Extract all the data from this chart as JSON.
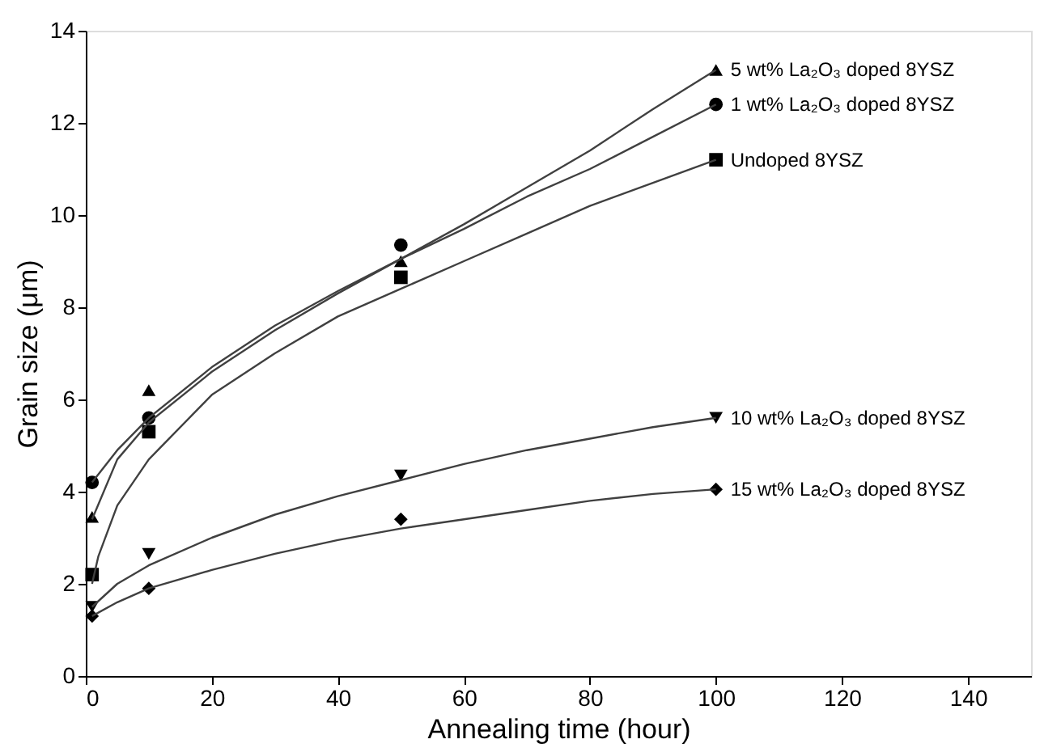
{
  "chart_data": {
    "type": "scatter",
    "xlabel": "Annealing time (hour)",
    "ylabel": "Grain size (μm)",
    "xlim": [
      0,
      150
    ],
    "xticks": [
      0,
      20,
      40,
      60,
      80,
      100,
      120,
      140
    ],
    "ylim": [
      0,
      14
    ],
    "yticks": [
      0,
      2,
      4,
      6,
      8,
      10,
      12,
      14
    ],
    "grid": false,
    "series": [
      {
        "name": "5 wt% La₂O₃ doped 8YSZ",
        "marker": "triangle",
        "color": "#000000",
        "x": [
          1,
          10,
          50,
          100
        ],
        "values": [
          3.45,
          6.2,
          9.0,
          13.15
        ]
      },
      {
        "name": "1 wt% La₂O₃ doped 8YSZ",
        "marker": "circle",
        "color": "#000000",
        "x": [
          1,
          10,
          50,
          100
        ],
        "values": [
          4.2,
          5.6,
          9.35,
          12.4
        ]
      },
      {
        "name": "Undoped 8YSZ",
        "marker": "square",
        "color": "#000000",
        "x": [
          1,
          10,
          50,
          100
        ],
        "values": [
          2.2,
          5.3,
          8.65,
          11.2
        ]
      },
      {
        "name": "10 wt% La₂O₃ doped 8YSZ",
        "marker": "triangle-down",
        "color": "#000000",
        "x": [
          1,
          10,
          50,
          100
        ],
        "values": [
          1.5,
          2.65,
          4.35,
          5.6
        ]
      },
      {
        "name": "15 wt% La₂O₃ doped 8YSZ",
        "marker": "diamond",
        "color": "#000000",
        "x": [
          1,
          10,
          50,
          100
        ],
        "values": [
          1.3,
          1.9,
          3.4,
          4.05
        ]
      },
      {
        "type": "line",
        "color": "#404040",
        "x": [
          1,
          5,
          10,
          20,
          30,
          40,
          50,
          60,
          70,
          80,
          90,
          100
        ],
        "values": [
          3.4,
          4.7,
          5.5,
          6.6,
          7.5,
          8.3,
          9.05,
          9.8,
          10.6,
          11.4,
          12.3,
          13.15
        ]
      },
      {
        "type": "line",
        "color": "#404040",
        "x": [
          1,
          5,
          10,
          20,
          30,
          40,
          50,
          60,
          70,
          80,
          90,
          100
        ],
        "values": [
          4.2,
          4.9,
          5.6,
          6.7,
          7.6,
          8.35,
          9.05,
          9.7,
          10.4,
          11.0,
          11.7,
          12.4
        ]
      },
      {
        "type": "line",
        "color": "#404040",
        "x": [
          1,
          2,
          5,
          10,
          20,
          30,
          40,
          50,
          60,
          70,
          80,
          90,
          100
        ],
        "values": [
          2.0,
          2.6,
          3.7,
          4.7,
          6.1,
          7.0,
          7.8,
          8.4,
          9.0,
          9.6,
          10.2,
          10.7,
          11.2
        ]
      },
      {
        "type": "line",
        "color": "#404040",
        "x": [
          1,
          5,
          10,
          20,
          30,
          40,
          50,
          60,
          70,
          80,
          90,
          100
        ],
        "values": [
          1.5,
          2.0,
          2.4,
          3.0,
          3.5,
          3.9,
          4.25,
          4.6,
          4.9,
          5.15,
          5.4,
          5.6
        ]
      },
      {
        "type": "line",
        "color": "#404040",
        "x": [
          1,
          5,
          10,
          20,
          30,
          40,
          50,
          60,
          70,
          80,
          90,
          100
        ],
        "values": [
          1.3,
          1.6,
          1.9,
          2.3,
          2.65,
          2.95,
          3.2,
          3.4,
          3.6,
          3.8,
          3.95,
          4.05
        ]
      }
    ]
  }
}
